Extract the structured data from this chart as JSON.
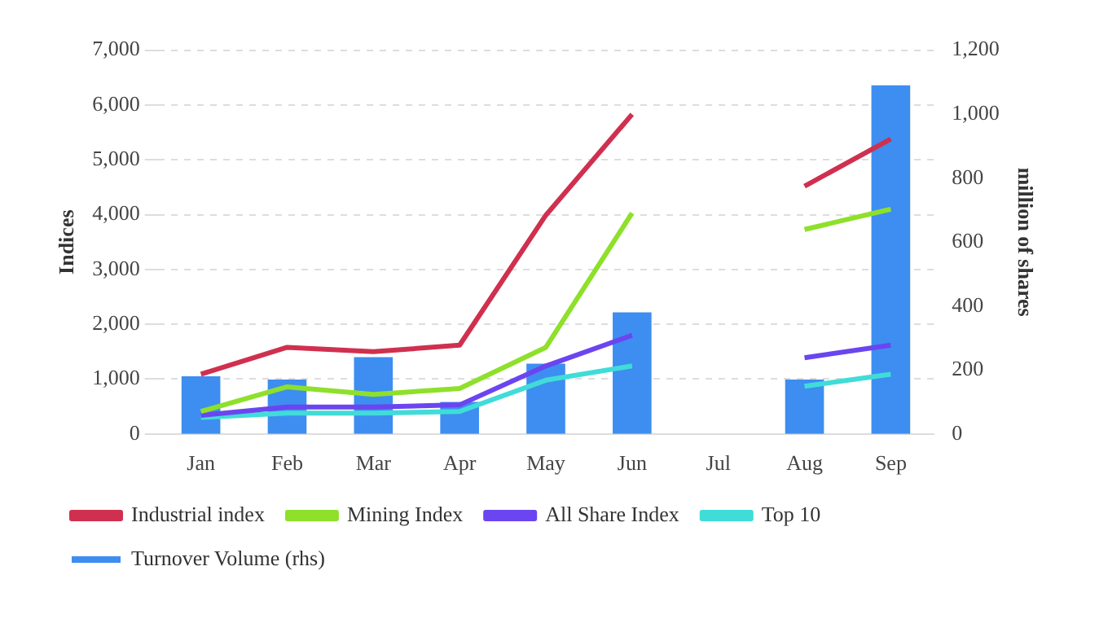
{
  "chart_data": {
    "type": "line",
    "categories": [
      "Jan",
      "Feb",
      "Mar",
      "Apr",
      "May",
      "Jun",
      "Jul",
      "Aug",
      "Sep"
    ],
    "ylabel": "Indices",
    "y2label": "million of shares",
    "ylim": [
      0,
      7000
    ],
    "yticks": [
      {
        "value": 0,
        "label": "0"
      },
      {
        "value": 1000,
        "label": "1,000"
      },
      {
        "value": 2000,
        "label": "2,000"
      },
      {
        "value": 3000,
        "label": "3,000"
      },
      {
        "value": 4000,
        "label": "4,000"
      },
      {
        "value": 5000,
        "label": "5,000"
      },
      {
        "value": 6000,
        "label": "6,000"
      },
      {
        "value": 7000,
        "label": "7,000"
      }
    ],
    "y2lim": [
      0,
      1200
    ],
    "y2ticks": [
      {
        "value": 0,
        "label": "0"
      },
      {
        "value": 200,
        "label": "200"
      },
      {
        "value": 400,
        "label": "400"
      },
      {
        "value": 600,
        "label": "600"
      },
      {
        "value": 800,
        "label": "800"
      },
      {
        "value": 1000,
        "label": "1,000"
      },
      {
        "value": 1200,
        "label": "1,200"
      }
    ],
    "grid": "y",
    "legend": "bottom",
    "marker": "none",
    "series": [
      {
        "name": "Turnover Volume (rhs)",
        "type": "bar",
        "axis": "y2",
        "color": "#3d8ef0",
        "values": [
          180,
          170,
          240,
          100,
          220,
          380,
          null,
          170,
          1090
        ]
      },
      {
        "name": "Industrial index",
        "color": "#d0304f",
        "values": [
          1090,
          1580,
          1500,
          1620,
          3990,
          5830,
          null,
          4520,
          5380
        ]
      },
      {
        "name": "Mining Index",
        "color": "#8ee02a",
        "values": [
          410,
          860,
          720,
          830,
          1580,
          4030,
          null,
          3730,
          4100
        ]
      },
      {
        "name": "All Share Index",
        "color": "#6a45f0",
        "values": [
          340,
          490,
          490,
          530,
          1240,
          1800,
          null,
          1390,
          1620
        ]
      },
      {
        "name": "Top 10",
        "color": "#40dcd8",
        "values": [
          300,
          380,
          380,
          410,
          980,
          1240,
          null,
          870,
          1090
        ]
      }
    ]
  }
}
